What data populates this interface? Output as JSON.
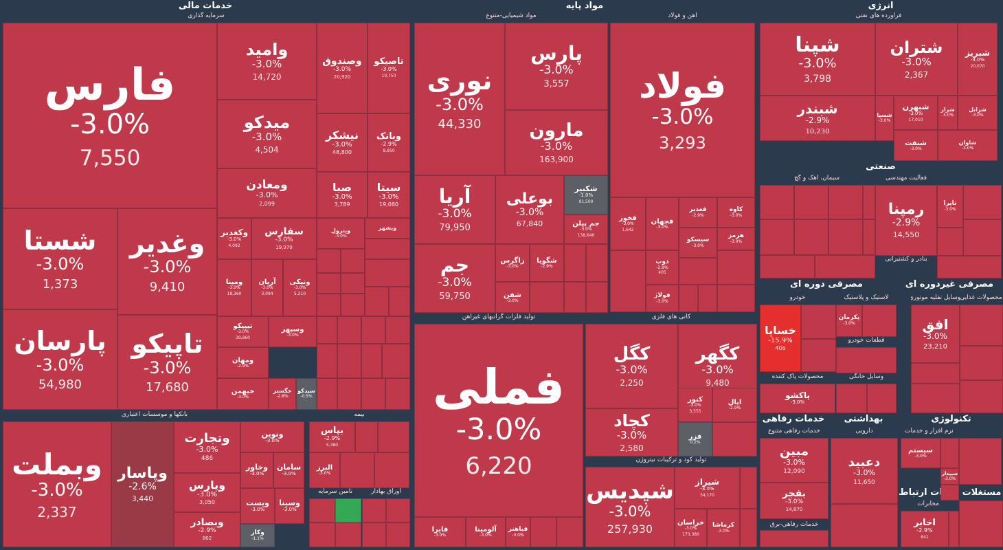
{
  "chart_data": {
    "type": "treemap",
    "sectors": [
      {
        "name": "خدمات مالی",
        "groups": [
          {
            "name": "سرمایه گذاری"
          },
          {
            "name": "بانکها و موسسات اعتباری"
          },
          {
            "name": "بیمه"
          },
          {
            "name": "تامین سرمایه"
          },
          {
            "name": "اوراق بهادار"
          }
        ]
      },
      {
        "name": "مواد پایه",
        "groups": [
          {
            "name": "مواد شیمیایی-متنوع"
          },
          {
            "name": "آهن و فولاد"
          },
          {
            "name": "تولید فلزات گرانبهای غیرآهن"
          },
          {
            "name": "کانی های فلزی"
          },
          {
            "name": "تولید کود و ترکیبات نیتروژن"
          }
        ]
      },
      {
        "name": "انرژی",
        "groups": [
          {
            "name": "فراورده های نفتی"
          }
        ]
      },
      {
        "name": "صنعتی",
        "groups": [
          {
            "name": "سیمان، آهک و گچ"
          },
          {
            "name": "فعالیت مهندسی"
          },
          {
            "name": "بنادر و کشتیرانی"
          }
        ]
      },
      {
        "name": "مصرفی دوره ای",
        "groups": [
          {
            "name": "خودرو"
          },
          {
            "name": "لاستیک و پلاستیک"
          },
          {
            "name": "قطعات خودرو"
          },
          {
            "name": "محصولات پاک کننده"
          },
          {
            "name": "وسایل خانگی"
          }
        ]
      },
      {
        "name": "مصرفی غیردوره ای",
        "groups": [
          {
            "name": "محصولات غذایی"
          },
          {
            "name": "وسایل نقلیه موتوری"
          }
        ]
      },
      {
        "name": "خدمات رفاهی",
        "groups": [
          {
            "name": "خدمات رفاهی متنوع"
          },
          {
            "name": "خدمات رفاهی-برق"
          }
        ]
      },
      {
        "name": "بهداشتی",
        "groups": [
          {
            "name": "دارویی"
          }
        ]
      },
      {
        "name": "تکنولوژی",
        "groups": [
          {
            "name": "نرم افزار و خدمات"
          }
        ]
      },
      {
        "name": "خدمات ارتباطی",
        "groups": [
          {
            "name": "مخابرات"
          }
        ]
      },
      {
        "name": "مستغلات"
      }
    ],
    "tiles": [
      {
        "s": "فارس",
        "c": "-3.0%",
        "v": "7,550"
      },
      {
        "s": "وامید",
        "c": "-3.0%",
        "v": "14,720"
      },
      {
        "s": "وصندوق",
        "c": "-3.0%",
        "v": "20,920"
      },
      {
        "s": "تاصیکو",
        "c": "-3.0%",
        "v": "10,750"
      },
      {
        "s": "میدکو",
        "c": "-3.0%",
        "v": "4,504"
      },
      {
        "s": "نیشکر",
        "c": "-3.0%",
        "v": "48,800"
      },
      {
        "s": "وبانک",
        "c": "-2.9%",
        "v": "8,950"
      },
      {
        "s": "ومعادن",
        "c": "-3.0%",
        "v": "2,099"
      },
      {
        "s": "صبا",
        "c": "-3.0%",
        "v": "3,789"
      },
      {
        "s": "سیتا",
        "c": "-3.0%",
        "v": "19,080"
      },
      {
        "s": "شستا",
        "c": "-3.0%",
        "v": "1,373"
      },
      {
        "s": "وغدیر",
        "c": "-3.0%",
        "v": "9,410"
      },
      {
        "s": "وکغدیر",
        "c": "-3.0%",
        "v": "4,092"
      },
      {
        "s": "سفارس",
        "c": "-3.0%",
        "v": "19,970"
      },
      {
        "s": "وپترول",
        "c": "-3.0%"
      },
      {
        "s": "وبشهر"
      },
      {
        "s": "ومپنا",
        "c": "-3.0%",
        "v": "18,360"
      },
      {
        "s": "آریان",
        "c": "-3.0%",
        "v": "3,094"
      },
      {
        "s": "ونیکی",
        "c": "-3.0%",
        "v": "5,210"
      },
      {
        "s": "پارسان",
        "c": "-3.0%",
        "v": "54,980"
      },
      {
        "s": "تاپیکو",
        "c": "-3.0%",
        "v": "17,680"
      },
      {
        "s": "تیپیکو",
        "c": "-3.0%",
        "v": "39,860"
      },
      {
        "s": "وسپهر",
        "c": "-3.0%"
      },
      {
        "s": "ومهان",
        "c": "-2.9%"
      },
      {
        "s": "خبهمن",
        "c": "-3.0%"
      },
      {
        "s": "خگستر",
        "c": "-2.8%"
      },
      {
        "s": "سیدکو",
        "c": "-0.5%"
      },
      {
        "s": "وبملت",
        "c": "-3.0%",
        "v": "2,337"
      },
      {
        "s": "وپاسار",
        "c": "-2.6%",
        "v": "3,440"
      },
      {
        "s": "وتجارت",
        "c": "-3.0%",
        "v": "486"
      },
      {
        "s": "ونوین",
        "c": "-3.0%"
      },
      {
        "s": "وخاور",
        "c": "-3.0%"
      },
      {
        "s": "سامان",
        "c": "-3.0%"
      },
      {
        "s": "وپارس",
        "c": "-3.0%",
        "v": "3,050"
      },
      {
        "s": "ویست",
        "c": "-3.0%"
      },
      {
        "s": "وسینا",
        "c": "-3.0%"
      },
      {
        "s": "وبصادر",
        "c": "-2.9%",
        "v": "802"
      },
      {
        "s": "وکار",
        "c": "-1.1%"
      },
      {
        "s": "بپاس",
        "c": "-2.9%",
        "v": "5,380"
      },
      {
        "s": "البرز",
        "c": "-3.0%"
      },
      {
        "s": "نوری",
        "c": "-3.0%",
        "v": "44,330"
      },
      {
        "s": "پارس",
        "c": "-3.0%",
        "v": "3,557"
      },
      {
        "s": "مارون",
        "c": "-3.0%",
        "v": "163,900"
      },
      {
        "s": "آریا",
        "c": "-3.0%",
        "v": "79,950"
      },
      {
        "s": "بوعلی",
        "c": "-3.0%",
        "v": "67,840"
      },
      {
        "s": "شکبیر",
        "c": "-1.0%",
        "v": "91,500"
      },
      {
        "s": "جم پیلن",
        "c": "-3.0%",
        "v": "138,640"
      },
      {
        "s": "جم",
        "c": "-3.0%",
        "v": "59,750"
      },
      {
        "s": "زاگرس",
        "c": "-3.0%"
      },
      {
        "s": "شگویا",
        "c": "-2.9%"
      },
      {
        "s": "شفن",
        "c": "-3.0%"
      },
      {
        "s": "فولاد",
        "c": "-3.0%",
        "v": "3,293"
      },
      {
        "s": "فخوز",
        "c": "-3.0%",
        "v": "1,642"
      },
      {
        "s": "فجهان",
        "c": "-3.0%"
      },
      {
        "s": "فغدیر",
        "c": "-2.9%"
      },
      {
        "s": "کاوه",
        "c": "-3.0%"
      },
      {
        "s": "هرمز",
        "c": "-3.0%"
      },
      {
        "s": "سیسکو",
        "c": "-3.0%"
      },
      {
        "s": "ذوب",
        "c": "-2.9%",
        "v": "405"
      },
      {
        "s": "فولاژ",
        "c": "-3.0%"
      },
      {
        "s": "فملی",
        "c": "-3.0%",
        "v": "6,220"
      },
      {
        "s": "فایرا",
        "c": "-3.0%"
      },
      {
        "s": "آلومینا",
        "c": "-3.0%"
      },
      {
        "s": "فباهنر",
        "c": "-3.0%"
      },
      {
        "s": "کگل",
        "c": "-3.0%",
        "v": "2,250"
      },
      {
        "s": "کگهر",
        "c": "-3.0%",
        "v": "9,480"
      },
      {
        "s": "کچاد",
        "c": "-3.0%",
        "v": "2,580"
      },
      {
        "s": "کنور",
        "c": "-3.0%",
        "v": "3,555"
      },
      {
        "s": "اپال",
        "c": "-2.9%"
      },
      {
        "s": "فزر",
        "c": "0.2%"
      },
      {
        "s": "شپدیس",
        "c": "-3.0%",
        "v": "257,930"
      },
      {
        "s": "شیراز",
        "c": "-3.0%",
        "v": "34,170"
      },
      {
        "s": "خراسان",
        "c": "-3.0%",
        "v": "173,380"
      },
      {
        "s": "کرماشا",
        "c": "-3.0%"
      },
      {
        "s": "شپنا",
        "c": "-3.0%",
        "v": "3,798"
      },
      {
        "s": "شتران",
        "c": "-3.0%",
        "v": "2,367"
      },
      {
        "s": "شبریز",
        "c": "-3.0%",
        "v": "20,070"
      },
      {
        "s": "شبندر",
        "c": "-2.9%",
        "v": "10,230"
      },
      {
        "s": "شبهرن",
        "c": "-3.0%",
        "v": "17,010"
      },
      {
        "s": "شسپا",
        "c": "-3.0%"
      },
      {
        "s": "شراز",
        "c": "-3.0%"
      },
      {
        "s": "شرانل",
        "c": "-3.0%"
      },
      {
        "s": "شنفت",
        "c": "-3.0%"
      },
      {
        "s": "شاوان",
        "c": "-3.0%"
      },
      {
        "s": "رمپنا",
        "c": "-2.9%",
        "v": "14,550"
      },
      {
        "s": "تاپرا",
        "c": "-3.0%"
      },
      {
        "s": "خساپا",
        "c": "-15.9%",
        "v": "406"
      },
      {
        "s": "پکرمان",
        "c": "-3.0%"
      },
      {
        "s": "پاکشو",
        "c": "-3.0%"
      },
      {
        "s": "افق",
        "c": "-3.0%",
        "v": "23,210"
      },
      {
        "s": "مبین",
        "c": "-3.0%",
        "v": "12,090"
      },
      {
        "s": "بفجر",
        "c": "-3.0%",
        "v": "14,870"
      },
      {
        "s": "دعبید",
        "c": "-3.0%",
        "v": "11,650"
      },
      {
        "s": "سیستم",
        "c": "-3.0%"
      },
      {
        "s": "سپیدار",
        "c": "-3.0%"
      },
      {
        "s": "اخابر",
        "c": "-2.9%",
        "v": "641"
      }
    ]
  }
}
